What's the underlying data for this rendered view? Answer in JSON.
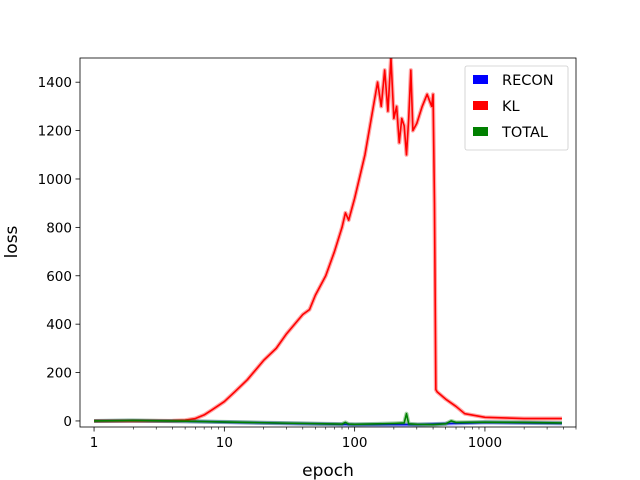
{
  "chart_data": {
    "type": "line",
    "title": "",
    "xlabel": "epoch",
    "ylabel": "loss",
    "xscale": "log",
    "xlim": [
      0.78,
      5000
    ],
    "ylim": [
      -25,
      1500
    ],
    "grid": false,
    "legend_placement": "top-right",
    "xticks": [
      {
        "value": 1,
        "label": "1"
      },
      {
        "value": 10,
        "label": "10"
      },
      {
        "value": 100,
        "label": "100"
      },
      {
        "value": 1000,
        "label": "1000"
      }
    ],
    "yticks": [
      {
        "value": 0,
        "label": "0"
      },
      {
        "value": 200,
        "label": "200"
      },
      {
        "value": 400,
        "label": "400"
      },
      {
        "value": 600,
        "label": "600"
      },
      {
        "value": 800,
        "label": "800"
      },
      {
        "value": 1000,
        "label": "1000"
      },
      {
        "value": 1200,
        "label": "1200"
      },
      {
        "value": 1400,
        "label": "1400"
      }
    ],
    "series": [
      {
        "name": "RECON",
        "color": "#0000ff",
        "x": [
          1,
          2,
          5,
          10,
          30,
          100,
          300,
          450,
          600,
          800,
          1000,
          2000,
          3900
        ],
        "y": [
          0,
          1,
          -1,
          -5,
          -10,
          -15,
          -15,
          -12,
          -10,
          -8,
          -6,
          -8,
          -10
        ]
      },
      {
        "name": "KL",
        "color": "#ff0000",
        "x": [
          1,
          2,
          4,
          5,
          6,
          7,
          8,
          10,
          12,
          15,
          20,
          25,
          30,
          40,
          45,
          50,
          60,
          70,
          80,
          85,
          90,
          100,
          120,
          150,
          160,
          170,
          180,
          190,
          200,
          210,
          220,
          230,
          240,
          250,
          260,
          270,
          280,
          300,
          330,
          360,
          390,
          400,
          410,
          420,
          430,
          500,
          600,
          700,
          1000,
          2000,
          3900
        ],
        "y": [
          0,
          0,
          1,
          3,
          10,
          25,
          45,
          80,
          120,
          170,
          250,
          300,
          360,
          440,
          460,
          520,
          600,
          700,
          800,
          860,
          830,
          920,
          1100,
          1400,
          1300,
          1450,
          1280,
          1500,
          1250,
          1300,
          1150,
          1250,
          1220,
          1100,
          1250,
          1450,
          1200,
          1230,
          1300,
          1350,
          1300,
          1350,
          900,
          130,
          120,
          90,
          60,
          30,
          15,
          10,
          10
        ]
      },
      {
        "name": "TOTAL",
        "color": "#008000",
        "x": [
          1,
          2,
          5,
          10,
          30,
          80,
          85,
          90,
          100,
          150,
          200,
          240,
          250,
          260,
          300,
          400,
          500,
          550,
          600,
          1000,
          2000,
          3900
        ],
        "y": [
          0,
          2,
          -1,
          -4,
          -9,
          -13,
          -6,
          -13,
          -14,
          -12,
          -10,
          -8,
          30,
          -12,
          -14,
          -15,
          -12,
          0,
          -6,
          -5,
          -6,
          -8
        ]
      }
    ]
  }
}
